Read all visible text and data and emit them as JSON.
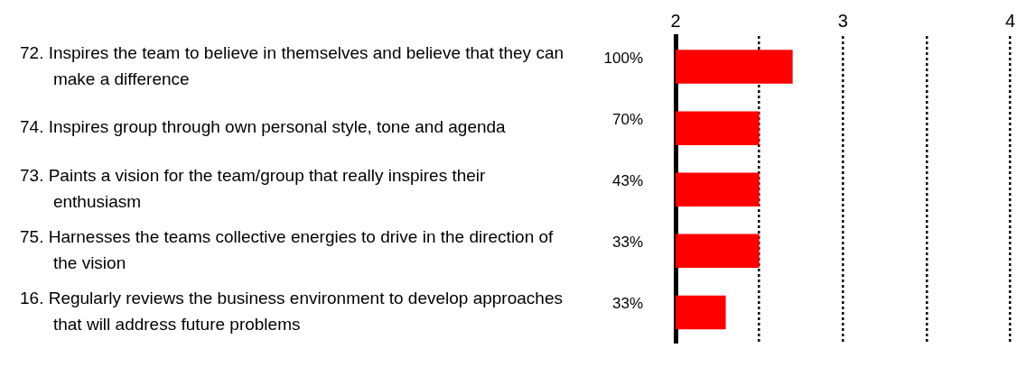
{
  "chart_data": {
    "type": "bar",
    "orientation": "horizontal",
    "categories": [
      "72. Inspires the team to believe in themselves and believe that they can make a difference",
      "74. Inspires group through own personal style, tone and agenda",
      "73. Paints a vision for the team/group that really inspires their enthusiasm",
      "75. Harnesses the teams collective energies to drive in the direction of the vision",
      "16. Regularly reviews the business environment to develop approaches that will address future problems"
    ],
    "values": [
      2.7,
      2.5,
      2.5,
      2.5,
      2.3
    ],
    "color": "#ff0000",
    "xlim": [
      2,
      4
    ],
    "xticks": [
      2,
      {
        "value": 2.5,
        "label": null
      },
      3,
      {
        "value": 3.5,
        "label": null
      },
      4
    ],
    "grid": "x",
    "annotations": [
      "100%",
      "70%",
      "43%",
      "33%",
      "33%"
    ]
  }
}
